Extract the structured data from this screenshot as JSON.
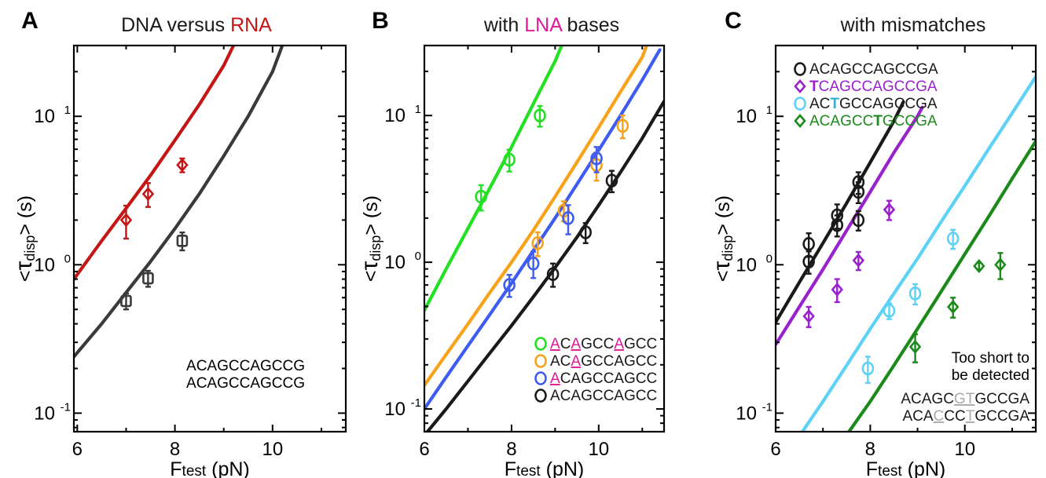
{
  "figure_title": "",
  "colors": {
    "black": "#1a1a1a",
    "red": "#c51616",
    "gray": "#3a3a3a",
    "green": "#22e022",
    "orange": "#f8a21a",
    "blue": "#3e5cf0",
    "purple": "#9922cc",
    "lightblue": "#5cd2f6",
    "darkgreen": "#1a8a1a",
    "magenta": "#e0189a",
    "lightgray": "#aaaaaa",
    "teal": "#28b4d8"
  },
  "chart_data": [
    {
      "type": "scatter",
      "panel": "A",
      "title_parts": [
        {
          "text": "DNA versus ",
          "color": "black"
        },
        {
          "text": "RNA",
          "color": "red"
        }
      ],
      "xlabel_main": "F",
      "xlabel_sub": "test",
      "xlabel_unit": " (pN)",
      "ylabel_pre": "<",
      "ylabel_main": "τ",
      "ylabel_sub": "disp",
      "ylabel_post": "> (s)",
      "x_ticks": [
        "6",
        "8",
        "10"
      ],
      "y_ticks": [
        {
          "base": "10",
          "exp": "-1"
        },
        {
          "base": "10",
          "exp": "0"
        },
        {
          "base": "10",
          "exp": "1"
        }
      ],
      "log_y": true,
      "xlim": [
        5.93,
        11.5
      ],
      "ylim": [
        0.075,
        30
      ],
      "grid": false,
      "legend_position": "bottom-right",
      "series": [
        {
          "name": "ACAGCCAGCCG",
          "name_color": "red",
          "color": "red",
          "marker": "diamond",
          "points": [
            [
              7.0,
              2.0
            ],
            [
              7.45,
              3.0
            ],
            [
              8.15,
              4.7
            ]
          ],
          "errors": [
            0.5,
            0.55,
            0.5
          ],
          "fit_line": [
            [
              5.93,
              0.8
            ],
            [
              6.5,
              1.45
            ],
            [
              7.0,
              2.4
            ],
            [
              7.5,
              4.0
            ],
            [
              8.0,
              6.9
            ],
            [
              8.5,
              12.0
            ],
            [
              9.0,
              22.0
            ],
            [
              9.2,
              30.0
            ]
          ]
        },
        {
          "name": "ACAGCCAGCCG",
          "name_color": "gray",
          "color": "gray",
          "marker": "square",
          "points": [
            [
              7.0,
              0.57
            ],
            [
              7.45,
              0.81
            ],
            [
              8.15,
              1.45
            ]
          ],
          "errors": [
            0.07,
            0.1,
            0.2
          ],
          "fit_line": [
            [
              5.93,
              0.24
            ],
            [
              6.5,
              0.4
            ],
            [
              7.0,
              0.65
            ],
            [
              7.5,
              1.05
            ],
            [
              8.0,
              1.75
            ],
            [
              8.5,
              3.0
            ],
            [
              9.0,
              5.4
            ],
            [
              9.5,
              10.0
            ],
            [
              10.0,
              20.0
            ],
            [
              10.2,
              30.0
            ]
          ]
        }
      ]
    },
    {
      "type": "scatter",
      "panel": "B",
      "title_parts": [
        {
          "text": "with ",
          "color": "black"
        },
        {
          "text": "LNA",
          "color": "magenta"
        },
        {
          "text": " bases",
          "color": "black"
        }
      ],
      "xlabel_main": "F",
      "xlabel_sub": "test",
      "xlabel_unit": " (pN)",
      "ylabel_pre": "<",
      "ylabel_main": "τ",
      "ylabel_sub": "disp",
      "ylabel_post": "> (s)",
      "x_ticks": [
        "6",
        "8",
        "10"
      ],
      "y_ticks": [
        {
          "base": "10",
          "exp": "-1"
        },
        {
          "base": "10",
          "exp": "0"
        },
        {
          "base": "10",
          "exp": "1"
        }
      ],
      "log_y": true,
      "xlim": [
        6.0,
        11.5
      ],
      "ylim": [
        0.07,
        30
      ],
      "grid": false,
      "legend_position": "bottom-right",
      "series": [
        {
          "name_parts": [
            {
              "text": "A",
              "color": "magenta",
              "underline": true
            },
            {
              "text": "C",
              "color": "black"
            },
            {
              "text": "A",
              "color": "magenta",
              "underline": true
            },
            {
              "text": "GCC",
              "color": "black"
            },
            {
              "text": "A",
              "color": "magenta",
              "underline": true
            },
            {
              "text": "GCC",
              "color": "black"
            }
          ],
          "color": "green",
          "marker": "circle",
          "points": [
            [
              7.3,
              2.8
            ],
            [
              7.95,
              5.0
            ],
            [
              8.65,
              10.0
            ]
          ],
          "errors": [
            0.55,
            0.85,
            1.6
          ],
          "fit_line": [
            [
              6.0,
              0.47
            ],
            [
              6.5,
              0.9
            ],
            [
              7.0,
              1.7
            ],
            [
              7.5,
              3.2
            ],
            [
              8.0,
              6.1
            ],
            [
              8.5,
              12.0
            ],
            [
              9.0,
              23.5
            ],
            [
              9.15,
              30.0
            ]
          ]
        },
        {
          "name_parts": [
            {
              "text": "AC",
              "color": "black"
            },
            {
              "text": "A",
              "color": "magenta",
              "underline": true
            },
            {
              "text": "GCCAGCC",
              "color": "black"
            }
          ],
          "color": "orange",
          "marker": "circle",
          "points": [
            [
              8.6,
              1.35
            ],
            [
              9.2,
              2.25
            ],
            [
              9.95,
              4.6
            ],
            [
              10.55,
              8.5
            ]
          ],
          "errors": [
            0.25,
            0.35,
            1.0,
            1.5
          ],
          "fit_line": [
            [
              6.0,
              0.145
            ],
            [
              6.5,
              0.235
            ],
            [
              7.0,
              0.38
            ],
            [
              7.5,
              0.62
            ],
            [
              8.0,
              1.0
            ],
            [
              8.5,
              1.65
            ],
            [
              9.0,
              2.8
            ],
            [
              9.5,
              4.8
            ],
            [
              10.0,
              8.3
            ],
            [
              10.5,
              14.5
            ],
            [
              11.0,
              25.0
            ],
            [
              11.1,
              30.0
            ]
          ]
        },
        {
          "name_parts": [
            {
              "text": "A",
              "color": "magenta",
              "underline": true
            },
            {
              "text": "CAGCCAGCC",
              "color": "black"
            }
          ],
          "color": "blue",
          "marker": "circle",
          "points": [
            [
              7.95,
              0.7
            ],
            [
              8.5,
              0.98
            ],
            [
              9.3,
              2.0
            ],
            [
              9.95,
              5.1
            ]
          ],
          "errors": [
            0.12,
            0.2,
            0.45,
            1.0
          ],
          "fit_line": [
            [
              6.0,
              0.1
            ],
            [
              6.5,
              0.165
            ],
            [
              7.0,
              0.27
            ],
            [
              7.5,
              0.44
            ],
            [
              8.0,
              0.72
            ],
            [
              8.5,
              1.2
            ],
            [
              9.0,
              2.0
            ],
            [
              9.5,
              3.4
            ],
            [
              10.0,
              5.8
            ],
            [
              10.5,
              10.0
            ],
            [
              11.0,
              17.5
            ],
            [
              11.4,
              28.0
            ]
          ]
        },
        {
          "name_parts": [
            {
              "text": "ACAGCCAGCC",
              "color": "black"
            }
          ],
          "color": "black",
          "marker": "circle",
          "points": [
            [
              8.95,
              0.83
            ],
            [
              9.7,
              1.6
            ],
            [
              10.3,
              3.6
            ]
          ],
          "errors": [
            0.15,
            0.25,
            0.6
          ],
          "fit_line": [
            [
              6.0,
              0.066
            ],
            [
              6.5,
              0.1
            ],
            [
              7.0,
              0.155
            ],
            [
              7.5,
              0.24
            ],
            [
              8.0,
              0.37
            ],
            [
              8.5,
              0.58
            ],
            [
              9.0,
              0.92
            ],
            [
              9.5,
              1.48
            ],
            [
              10.0,
              2.45
            ],
            [
              10.5,
              4.1
            ],
            [
              11.0,
              7.0
            ],
            [
              11.5,
              12.5
            ]
          ]
        }
      ]
    },
    {
      "type": "scatter",
      "panel": "C",
      "title_parts": [
        {
          "text": "with mismatches",
          "color": "black"
        }
      ],
      "xlabel_main": "F",
      "xlabel_sub": "test",
      "xlabel_unit": " (pN)",
      "ylabel_pre": "<",
      "ylabel_main": "τ",
      "ylabel_sub": "disp",
      "ylabel_post": "> (s)",
      "x_ticks": [
        "6",
        "8",
        "10"
      ],
      "y_ticks": [
        {
          "base": "10",
          "exp": "-1"
        },
        {
          "base": "10",
          "exp": "0"
        },
        {
          "base": "10",
          "exp": "1"
        }
      ],
      "log_y": true,
      "xlim": [
        6.0,
        11.5
      ],
      "ylim": [
        0.075,
        30
      ],
      "grid": false,
      "legend_position": "top-left",
      "series": [
        {
          "name_parts": [
            {
              "text": "ACAGCCAGCCGA",
              "color": "black"
            }
          ],
          "color": "black",
          "marker": "circle",
          "points": [
            [
              6.7,
              1.38
            ],
            [
              6.7,
              1.05
            ],
            [
              7.3,
              2.15
            ],
            [
              7.3,
              1.85
            ],
            [
              7.75,
              3.6
            ],
            [
              7.75,
              3.1
            ],
            [
              7.75,
              2.0
            ]
          ],
          "errors": [
            0.25,
            0.18,
            0.4,
            0.3,
            0.6,
            0.5,
            0.3
          ],
          "fit_line": [
            [
              6.0,
              0.41
            ],
            [
              6.5,
              0.76
            ],
            [
              7.0,
              1.4
            ],
            [
              7.5,
              2.6
            ],
            [
              8.0,
              4.9
            ],
            [
              8.5,
              9.3
            ],
            [
              8.7,
              12.5
            ]
          ]
        },
        {
          "name_parts": [
            {
              "text": "T",
              "color": "purple",
              "bold": true
            },
            {
              "text": "CAGCCAGCCGA",
              "color": "purple"
            }
          ],
          "color": "purple",
          "marker": "diamond",
          "points": [
            [
              6.7,
              0.45
            ],
            [
              7.3,
              0.68
            ],
            [
              7.75,
              1.07
            ],
            [
              8.4,
              2.35
            ]
          ],
          "errors": [
            0.07,
            0.12,
            0.15,
            0.35
          ],
          "fit_line": [
            [
              6.0,
              0.29
            ],
            [
              6.5,
              0.52
            ],
            [
              7.0,
              0.93
            ],
            [
              7.5,
              1.7
            ],
            [
              8.0,
              3.1
            ],
            [
              8.5,
              5.7
            ],
            [
              9.0,
              10.0
            ],
            [
              9.1,
              11.5
            ]
          ]
        },
        {
          "name_parts": [
            {
              "text": "AC",
              "color": "black"
            },
            {
              "text": "T",
              "color": "teal",
              "bold": true
            },
            {
              "text": "GCCAGCCGA",
              "color": "black"
            }
          ],
          "color": "lightblue",
          "marker": "circle",
          "points": [
            [
              7.95,
              0.2
            ],
            [
              8.4,
              0.49
            ],
            [
              8.95,
              0.64
            ],
            [
              9.75,
              1.5
            ]
          ],
          "errors": [
            0.04,
            0.06,
            0.1,
            0.22
          ],
          "fit_line": [
            [
              6.5,
              0.07
            ],
            [
              7.0,
              0.12
            ],
            [
              7.5,
              0.21
            ],
            [
              8.0,
              0.37
            ],
            [
              8.5,
              0.64
            ],
            [
              9.0,
              1.1
            ],
            [
              9.5,
              1.95
            ],
            [
              10.0,
              3.4
            ],
            [
              10.5,
              6.0
            ],
            [
              11.0,
              10.5
            ],
            [
              11.5,
              18.5
            ]
          ]
        },
        {
          "name_parts": [
            {
              "text": "ACAGCC",
              "color": "darkgreen"
            },
            {
              "text": "T",
              "color": "darkgreen",
              "bold": true
            },
            {
              "text": "GCCGA",
              "color": "darkgreen"
            }
          ],
          "color": "darkgreen",
          "marker": "diamond",
          "points": [
            [
              8.95,
              0.28
            ],
            [
              9.75,
              0.52
            ],
            [
              10.3,
              0.98
            ],
            [
              10.75,
              1.0
            ]
          ],
          "errors": [
            0.06,
            0.08,
            0.05,
            0.2
          ],
          "fit_line": [
            [
              7.55,
              0.075
            ],
            [
              8.0,
              0.12
            ],
            [
              8.5,
              0.21
            ],
            [
              9.0,
              0.37
            ],
            [
              9.5,
              0.66
            ],
            [
              10.0,
              1.18
            ],
            [
              10.5,
              2.1
            ],
            [
              11.0,
              3.8
            ],
            [
              11.5,
              6.8
            ]
          ]
        }
      ],
      "annotation": {
        "line1": "Too short to",
        "line2": "be detected",
        "seq1_parts": [
          {
            "text": "ACAGC",
            "color": "black"
          },
          {
            "text": "GT",
            "color": "lightgray",
            "underline": true
          },
          {
            "text": "GCCGA",
            "color": "black"
          }
        ],
        "seq2_parts": [
          {
            "text": "ACA",
            "color": "black"
          },
          {
            "text": "C",
            "color": "lightgray",
            "underline": true
          },
          {
            "text": "CC",
            "color": "black"
          },
          {
            "text": "T",
            "color": "lightgray",
            "underline": true
          },
          {
            "text": "GCCGA",
            "color": "black"
          }
        ]
      }
    }
  ]
}
